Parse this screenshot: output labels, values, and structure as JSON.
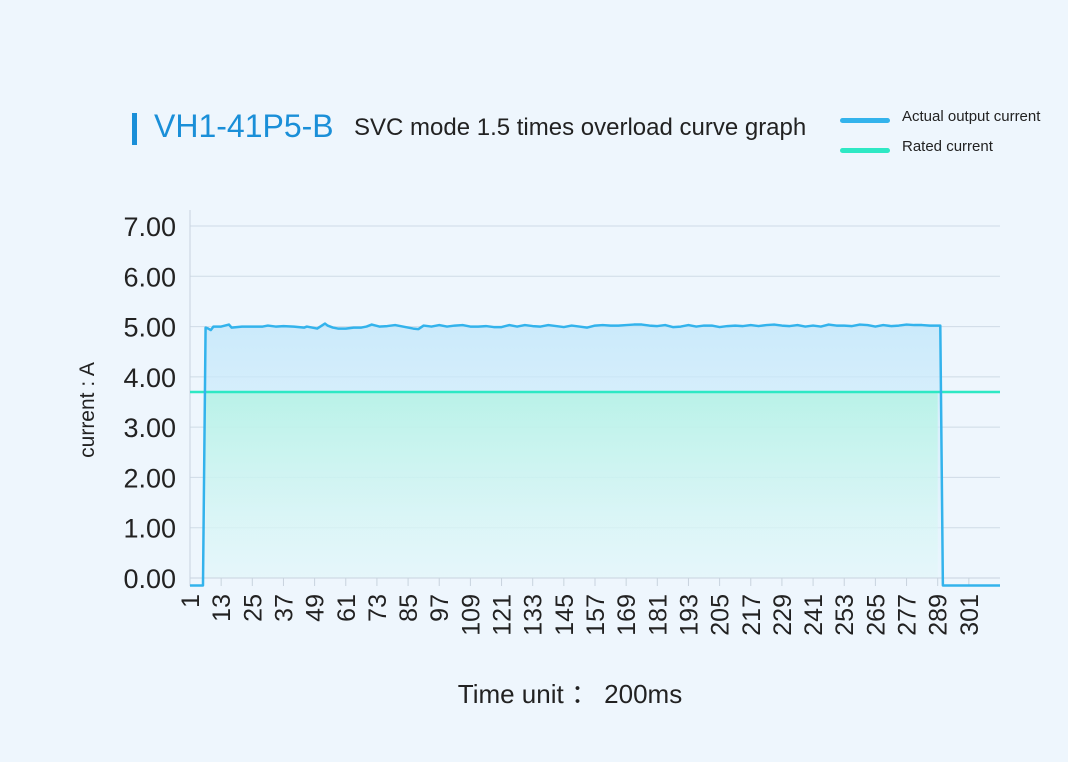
{
  "header": {
    "title_main": "VH1-41P5-B",
    "title_sub": "SVC mode 1.5 times overload curve graph"
  },
  "legend": [
    {
      "label": "Actual output current",
      "color": "#33b3ec"
    },
    {
      "label": "Rated current",
      "color": "#2ee8c4"
    }
  ],
  "chart_data": {
    "type": "area",
    "title": "VH1-41P5-B SVC mode 1.5 times overload curve graph",
    "xlabel": "Time unit ： 200ms",
    "ylabel": "current : A",
    "ylim": [
      0,
      7
    ],
    "xlim": [
      1,
      313
    ],
    "yticks": [
      "0.00",
      "1.00",
      "2.00",
      "3.00",
      "4.00",
      "5.00",
      "6.00",
      "7.00"
    ],
    "xticks": [
      1,
      13,
      25,
      37,
      49,
      61,
      73,
      85,
      97,
      109,
      121,
      133,
      145,
      157,
      169,
      181,
      193,
      205,
      217,
      229,
      241,
      253,
      265,
      277,
      289,
      301
    ],
    "grid": true,
    "legend_position": "top-right",
    "series": [
      {
        "name": "Actual output current",
        "color": "#33b3ec",
        "x": [
          1,
          6,
          7,
          8,
          9,
          10,
          13,
          16,
          17,
          21,
          25,
          29,
          31,
          34,
          37,
          41,
          45,
          46,
          48,
          50,
          53,
          54,
          56,
          58,
          61,
          64,
          67,
          69,
          71,
          74,
          77,
          80,
          83,
          85,
          87,
          89,
          91,
          94,
          97,
          100,
          103,
          106,
          109,
          112,
          115,
          118,
          121,
          124,
          127,
          130,
          133,
          136,
          139,
          142,
          145,
          148,
          151,
          154,
          157,
          160,
          163,
          166,
          169,
          172,
          175,
          178,
          181,
          184,
          187,
          190,
          193,
          196,
          199,
          202,
          205,
          208,
          211,
          214,
          217,
          220,
          223,
          226,
          229,
          232,
          235,
          238,
          241,
          244,
          247,
          250,
          253,
          256,
          259,
          262,
          265,
          268,
          271,
          274,
          277,
          280,
          283,
          286,
          289,
          290,
          291,
          292,
          297,
          302,
          307,
          313
        ],
        "y": [
          -0.15,
          -0.15,
          4.98,
          4.96,
          4.93,
          5.0,
          5.0,
          5.04,
          4.98,
          5.0,
          5.0,
          5.0,
          5.02,
          5.0,
          5.01,
          5.0,
          4.98,
          5.0,
          4.98,
          4.96,
          5.06,
          5.02,
          4.98,
          4.96,
          4.96,
          4.98,
          4.98,
          5.0,
          5.04,
          5.0,
          5.01,
          5.03,
          5.0,
          4.98,
          4.96,
          4.95,
          5.02,
          5.0,
          5.03,
          5.0,
          5.02,
          5.03,
          5.0,
          5.0,
          5.01,
          4.99,
          4.99,
          5.03,
          5.0,
          5.03,
          5.01,
          5.0,
          5.03,
          5.01,
          4.99,
          5.02,
          5.0,
          4.98,
          5.02,
          5.03,
          5.02,
          5.02,
          5.03,
          5.04,
          5.04,
          5.02,
          5.01,
          5.03,
          4.99,
          5.0,
          5.03,
          5.0,
          5.02,
          5.02,
          4.99,
          5.01,
          5.02,
          5.01,
          5.03,
          5.01,
          5.03,
          5.04,
          5.02,
          5.01,
          5.03,
          5.0,
          5.02,
          5.0,
          5.04,
          5.02,
          5.02,
          5.01,
          5.04,
          5.03,
          5.0,
          5.03,
          5.01,
          5.02,
          5.04,
          5.03,
          5.03,
          5.02,
          5.02,
          5.02,
          -0.15,
          -0.15,
          -0.15,
          -0.15,
          -0.15,
          -0.15
        ]
      },
      {
        "name": "Rated current",
        "color": "#2ee8c4",
        "x": [
          1,
          313
        ],
        "y": [
          3.7,
          3.7
        ]
      }
    ]
  }
}
